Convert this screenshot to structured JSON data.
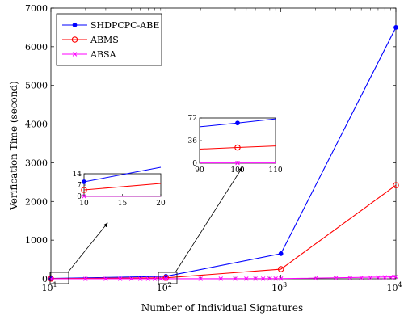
{
  "chart_data": {
    "type": "line",
    "xscale": "log",
    "xlabel": "Number of Individual Signatures",
    "ylabel": "Verification Time (second)",
    "xlim": [
      10,
      10000
    ],
    "ylim": [
      0,
      7000
    ],
    "x": [
      10,
      100,
      1000,
      10000
    ],
    "xtick_labels": [
      {
        "base": "10",
        "exp": "1"
      },
      {
        "base": "10",
        "exp": "2"
      },
      {
        "base": "10",
        "exp": "3"
      },
      {
        "base": "10",
        "exp": "4"
      }
    ],
    "yticks": [
      0,
      1000,
      2000,
      3000,
      4000,
      5000,
      6000,
      7000
    ],
    "grid": false,
    "legend_position": "top-left",
    "series": [
      {
        "name": "SHDPCPC-ABE",
        "color": "#0000ff",
        "marker": "dot",
        "values": [
          9,
          64,
          650,
          6500
        ]
      },
      {
        "name": "ABMS",
        "color": "#ff0000",
        "marker": "circle",
        "values": [
          4,
          25,
          250,
          2420
        ]
      },
      {
        "name": "ABSA",
        "color": "#ff00ff",
        "marker": "x",
        "values": [
          0.05,
          0.5,
          5,
          50
        ]
      }
    ],
    "insets": [
      {
        "id": "inset-1",
        "x": [
          10,
          20
        ],
        "xticks": [
          10,
          15,
          20
        ],
        "yticks": [
          0,
          7,
          14
        ],
        "ylim": [
          0,
          14
        ],
        "series": [
          {
            "name": "SHDPCPC-ABE",
            "values": [
              9,
              18
            ]
          },
          {
            "name": "ABMS",
            "values": [
              4,
              8
            ]
          },
          {
            "name": "ABSA",
            "values": [
              0.05,
              0.1
            ]
          }
        ]
      },
      {
        "id": "inset-2",
        "x": [
          90,
          100,
          110
        ],
        "xticks": [
          90,
          100,
          110
        ],
        "yticks": [
          0,
          36,
          72
        ],
        "ylim": [
          0,
          72
        ],
        "series": [
          {
            "name": "SHDPCPC-ABE",
            "values": [
              58,
              64,
              70.5
            ]
          },
          {
            "name": "ABMS",
            "values": [
              22.5,
              25,
              27.5
            ]
          },
          {
            "name": "ABSA",
            "values": [
              0.45,
              0.5,
              0.55
            ]
          }
        ]
      }
    ]
  }
}
